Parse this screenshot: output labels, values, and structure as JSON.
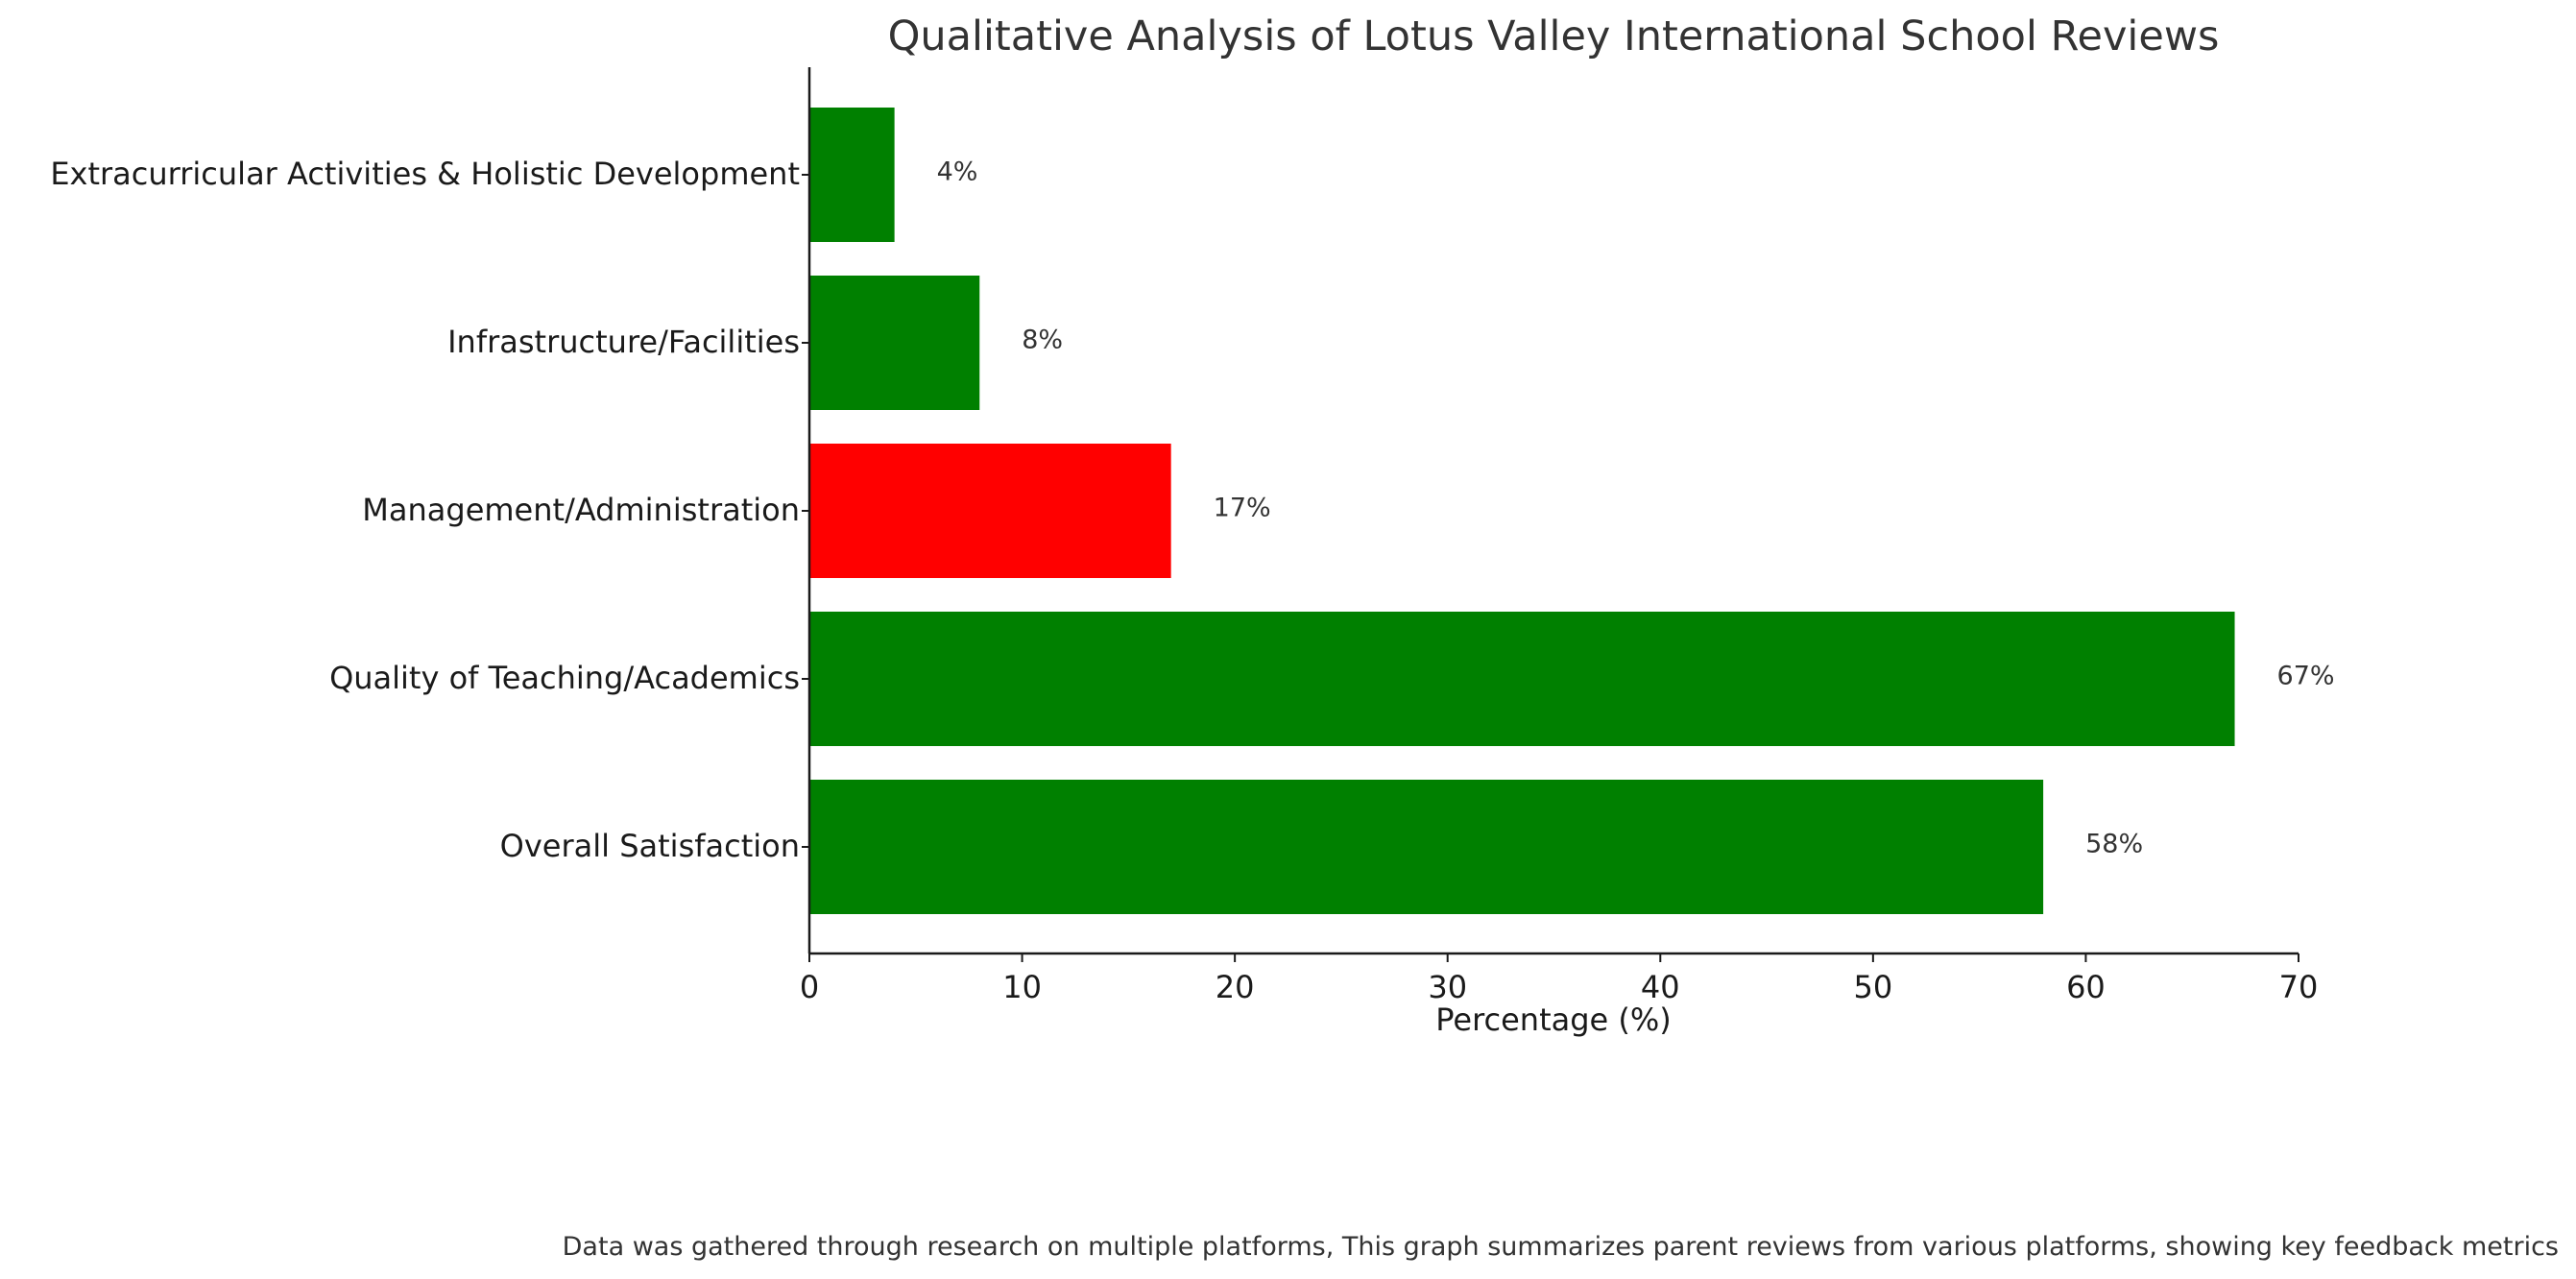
{
  "chart_data": {
    "type": "bar",
    "orientation": "horizontal",
    "title": "Qualitative Analysis of Lotus Valley International School Reviews",
    "xlabel": "Percentage (%)",
    "ylabel": "",
    "xlim": [
      0,
      70
    ],
    "xticks": [
      0,
      10,
      20,
      30,
      40,
      50,
      60,
      70
    ],
    "grid": false,
    "categories": [
      "Overall Satisfaction",
      "Quality of Teaching/Academics",
      "Management/Administration",
      "Infrastructure/Facilities",
      "Extracurricular Activities & Holistic Development"
    ],
    "values": [
      58,
      67,
      17,
      8,
      4
    ],
    "value_labels": [
      "58%",
      "67%",
      "17%",
      "8%",
      "4%"
    ],
    "bar_colors": [
      "#008000",
      "#008000",
      "#ff0000",
      "#008000",
      "#008000"
    ],
    "footnote": "Data was gathered through research on multiple platforms, This graph summarizes parent reviews from various platforms, showing key feedback metrics"
  }
}
